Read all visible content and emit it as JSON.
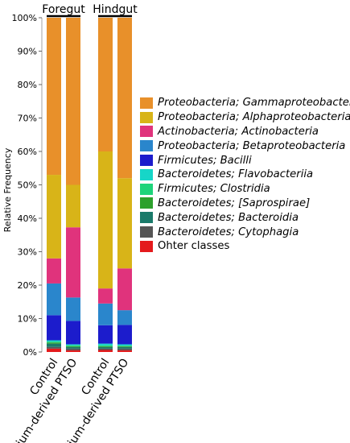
{
  "chart_data": {
    "type": "bar",
    "stacked": true,
    "normalized_to": "100%",
    "ylabel": "Relative Frequency",
    "ylim": [
      0,
      100
    ],
    "yticks": [
      "0%",
      "10%",
      "20%",
      "30%",
      "40%",
      "50%",
      "60%",
      "70%",
      "80%",
      "90%",
      "100%"
    ],
    "groups": [
      {
        "label": "Foregut",
        "bar_indices": [
          0,
          1
        ]
      },
      {
        "label": "Hindgut",
        "bar_indices": [
          2,
          3
        ]
      }
    ],
    "categories": [
      "Control",
      "Allium-derived PTSO",
      "Control",
      "Allium-derived PTSO"
    ],
    "series": [
      {
        "name": "Ohter classes",
        "color": "#e41a1c",
        "italic": false,
        "values": [
          1.0,
          0.5,
          0.6,
          0.5
        ]
      },
      {
        "name": "Bacteroidetes; Cytophagia",
        "color": "#555555",
        "italic": true,
        "values": [
          0.5,
          0.5,
          0.4,
          0.5
        ]
      },
      {
        "name": "Bacteroidetes; Bacteroidia",
        "color": "#1a7a6a",
        "italic": true,
        "values": [
          1.0,
          0.5,
          0.5,
          0.5
        ]
      },
      {
        "name": "Bacteroidetes; [Saprospirae]",
        "color": "#2ca02c",
        "italic": true,
        "values": [
          0.3,
          0.2,
          0.2,
          0.2
        ]
      },
      {
        "name": "Firmicutes; Clostridia",
        "color": "#1ed47a",
        "italic": true,
        "values": [
          0.3,
          0.3,
          0.3,
          0.2
        ]
      },
      {
        "name": "Bacteroidetes; Flavobacteriia",
        "color": "#16d6c8",
        "italic": true,
        "values": [
          0.4,
          0.3,
          0.5,
          0.4
        ]
      },
      {
        "name": "Firmicutes; Bacilli",
        "color": "#1c1ccc",
        "italic": true,
        "values": [
          7.5,
          7.0,
          5.5,
          5.8
        ]
      },
      {
        "name": "Proteobacteria; Betaproteobacteria",
        "color": "#2a86cc",
        "italic": true,
        "values": [
          9.5,
          7.0,
          6.5,
          4.4
        ]
      },
      {
        "name": "Actinobacteria; Actinobacteria",
        "color": "#e0337c",
        "italic": true,
        "values": [
          7.5,
          21.0,
          4.5,
          12.5
        ]
      },
      {
        "name": "Proteobacteria; Alphaproteobacteria",
        "color": "#d8b418",
        "italic": true,
        "values": [
          25.0,
          12.7,
          41.0,
          27.0
        ]
      },
      {
        "name": "Proteobacteria; Gammaproteobacteria",
        "color": "#e8902a",
        "italic": true,
        "values": [
          47.0,
          50.0,
          40.0,
          48.0
        ]
      }
    ],
    "legend_order": [
      "Proteobacteria; Gammaproteobacteria",
      "Proteobacteria; Alphaproteobacteria",
      "Actinobacteria; Actinobacteria",
      "Proteobacteria; Betaproteobacteria",
      "Firmicutes; Bacilli",
      "Bacteroidetes; Flavobacteriia",
      "Firmicutes; Clostridia",
      "Bacteroidetes; [Saprospirae]",
      "Bacteroidetes; Bacteroidia",
      "Bacteroidetes; Cytophagia",
      "Ohter classes"
    ],
    "legend_position": "right"
  }
}
